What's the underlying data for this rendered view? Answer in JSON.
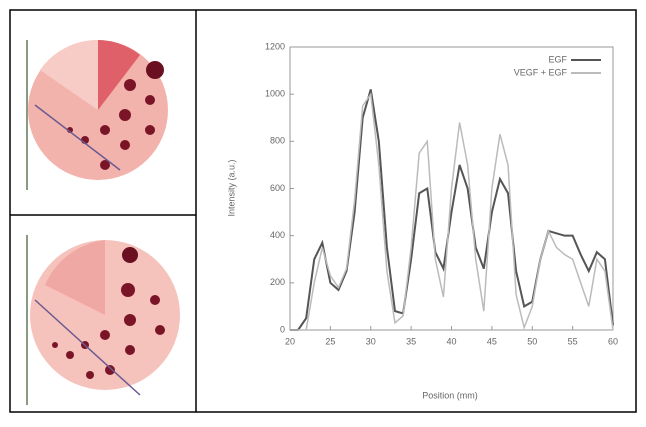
{
  "chart_data": {
    "type": "line",
    "xlabel": "Position (mm)",
    "ylabel": "Intensity (a.u.)",
    "x": [
      20,
      21,
      22,
      23,
      24,
      25,
      26,
      27,
      28,
      29,
      30,
      31,
      32,
      33,
      34,
      35,
      36,
      37,
      38,
      39,
      40,
      41,
      42,
      43,
      44,
      45,
      46,
      47,
      48,
      49,
      50,
      51,
      52,
      53,
      54,
      55,
      56,
      57,
      58,
      59,
      60
    ],
    "series": [
      {
        "name": "EGF",
        "color": "#555555",
        "values": [
          0,
          0,
          50,
          300,
          370,
          200,
          170,
          250,
          500,
          900,
          1020,
          800,
          350,
          80,
          70,
          300,
          580,
          600,
          330,
          260,
          500,
          700,
          600,
          350,
          260,
          500,
          640,
          580,
          250,
          100,
          120,
          300,
          420,
          410,
          400,
          400,
          320,
          250,
          330,
          300,
          20
        ]
      },
      {
        "name": "VEGF + EGF",
        "color": "#bbbbbb",
        "values": [
          0,
          0,
          0,
          200,
          350,
          230,
          180,
          260,
          550,
          950,
          1000,
          700,
          250,
          30,
          60,
          350,
          750,
          800,
          300,
          140,
          600,
          880,
          700,
          300,
          80,
          600,
          830,
          700,
          150,
          10,
          100,
          300,
          420,
          350,
          320,
          300,
          200,
          100,
          300,
          250,
          0
        ]
      }
    ],
    "xlim": [
      20,
      60
    ],
    "xticks": [
      20,
      25,
      30,
      35,
      40,
      45,
      50,
      55,
      60
    ],
    "ylim": [
      0,
      1200
    ],
    "yticks": [
      0,
      200,
      400,
      600,
      800,
      1000,
      1200
    ],
    "legend": "upper right"
  }
}
